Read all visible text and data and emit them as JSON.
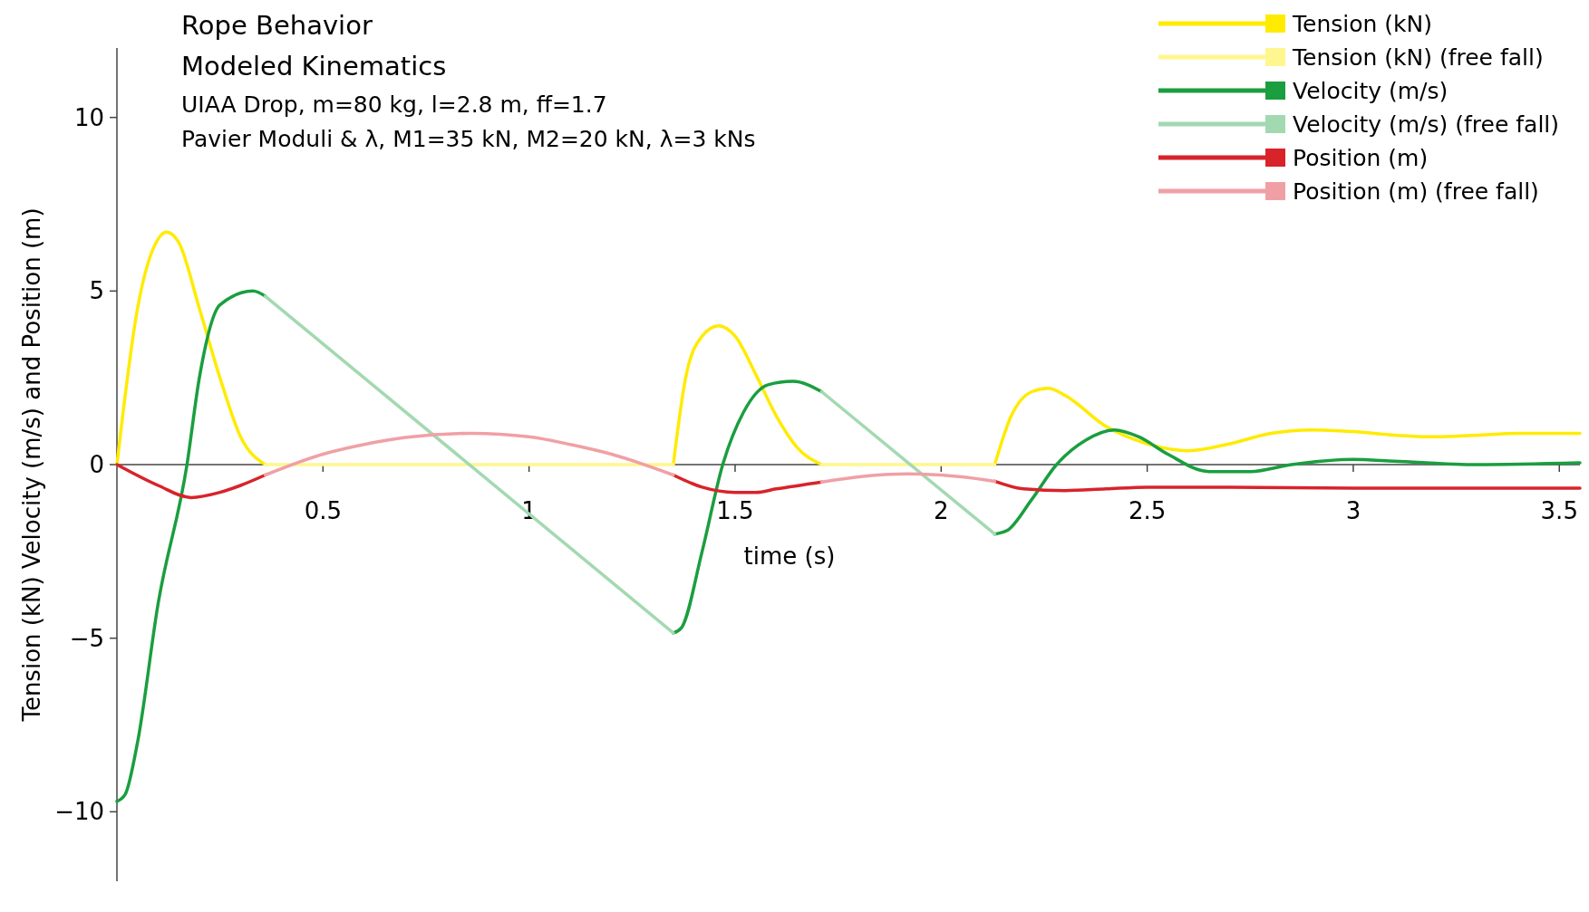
{
  "chart_data": {
    "type": "line",
    "title": "Rope Behavior",
    "subtitle": "Modeled Kinematics",
    "annotations": [
      "UIAA Drop, m=80 kg, l=2.8 m, ff=1.7",
      "Pavier Moduli & λ, M1=35 kN, M2=20 kN, λ=3 kNs"
    ],
    "xlabel": "time (s)",
    "ylabel": "Tension (kN) Velocity (m/s) and Position (m)",
    "xlim": [
      0,
      3.55
    ],
    "ylim": [
      -12,
      12
    ],
    "xticks": [
      0.5,
      1,
      1.5,
      2,
      2.5,
      3,
      3.5
    ],
    "yticks": [
      -10,
      -5,
      0,
      5,
      10
    ],
    "grid": false,
    "legend": "top right",
    "line_style": "solid",
    "marker": "none",
    "series": [
      {
        "name": "Tension (kN)",
        "color": "#ffeb00",
        "x": [
          0,
          0.05,
          0.1,
          0.12,
          0.15,
          0.2,
          0.25,
          0.3,
          0.36,
          0.37,
          1.35,
          1.38,
          1.42,
          1.46,
          1.5,
          1.55,
          1.6,
          1.65,
          1.71,
          1.72,
          2.13,
          2.17,
          2.22,
          2.26,
          2.3,
          2.4,
          2.5,
          2.6,
          2.7,
          2.8,
          2.9,
          3.0,
          3.1,
          3.2,
          3.3,
          3.4,
          3.55
        ],
        "values": [
          0,
          4.5,
          6.5,
          6.7,
          6.4,
          4.5,
          2.5,
          0.8,
          0,
          null,
          0,
          2.5,
          3.7,
          4.0,
          3.7,
          2.6,
          1.4,
          0.5,
          0,
          null,
          0,
          1.4,
          2.1,
          2.2,
          2.0,
          1.1,
          0.6,
          0.4,
          0.6,
          0.9,
          1.0,
          0.95,
          0.85,
          0.8,
          0.85,
          0.9,
          0.9
        ]
      },
      {
        "name": "Tension (kN) (free fall)",
        "color": "#fff68f",
        "x": [
          0.36,
          1.35,
          1.36,
          1.71,
          2.13
        ],
        "values": [
          0,
          0,
          null,
          0,
          0
        ]
      },
      {
        "name": "Velocity (m/s)",
        "color": "#1a9e3f",
        "x": [
          0,
          0.02,
          0.05,
          0.1,
          0.17,
          0.2,
          0.25,
          0.33,
          0.36,
          0.37,
          1.35,
          1.37,
          1.42,
          1.47,
          1.52,
          1.58,
          1.64,
          1.71,
          1.72,
          2.13,
          2.16,
          2.22,
          2.28,
          2.35,
          2.42,
          2.48,
          2.55,
          2.65,
          2.75,
          2.85,
          3.0,
          3.1,
          3.3,
          3.55
        ],
        "values": [
          -9.7,
          -9.5,
          -8.0,
          -4.0,
          0,
          2.5,
          4.6,
          5.0,
          4.85,
          null,
          -4.85,
          -4.7,
          -2.5,
          0,
          1.5,
          2.3,
          2.4,
          2.1,
          null,
          -2.0,
          -1.9,
          -1.0,
          0,
          0.7,
          1.0,
          0.8,
          0.3,
          -0.2,
          -0.2,
          0,
          0.15,
          0.1,
          0,
          0.05
        ]
      },
      {
        "name": "Velocity (m/s) (free fall)",
        "color": "#a3d9b1",
        "x": [
          0.36,
          1.35,
          1.36,
          1.71,
          2.13
        ],
        "values": [
          4.85,
          -4.85,
          null,
          2.1,
          -2.0
        ]
      },
      {
        "name": "Position (m)",
        "color": "#d8232a",
        "x": [
          0,
          0.1,
          0.18,
          0.25,
          0.3,
          0.36,
          0.37,
          1.35,
          1.42,
          1.5,
          1.55,
          1.6,
          1.71,
          1.72,
          2.13,
          2.2,
          2.3,
          2.4,
          2.5,
          2.7,
          3.0,
          3.55
        ],
        "values": [
          0,
          -0.6,
          -0.95,
          -0.8,
          -0.6,
          -0.3,
          null,
          -0.3,
          -0.65,
          -0.8,
          -0.8,
          -0.7,
          -0.5,
          null,
          -0.48,
          -0.7,
          -0.75,
          -0.7,
          -0.65,
          -0.65,
          -0.68,
          -0.68
        ]
      },
      {
        "name": "Position (m) (free fall)",
        "color": "#f0a0a5",
        "x": [
          0.36,
          0.5,
          0.6,
          0.7,
          0.86,
          1.0,
          1.1,
          1.2,
          1.35,
          1.36,
          1.71,
          1.8,
          1.92,
          2.05,
          2.13
        ],
        "values": [
          -0.3,
          0.3,
          0.58,
          0.78,
          0.9,
          0.8,
          0.58,
          0.3,
          -0.3,
          null,
          -0.5,
          -0.35,
          -0.27,
          -0.35,
          -0.48
        ]
      }
    ]
  }
}
